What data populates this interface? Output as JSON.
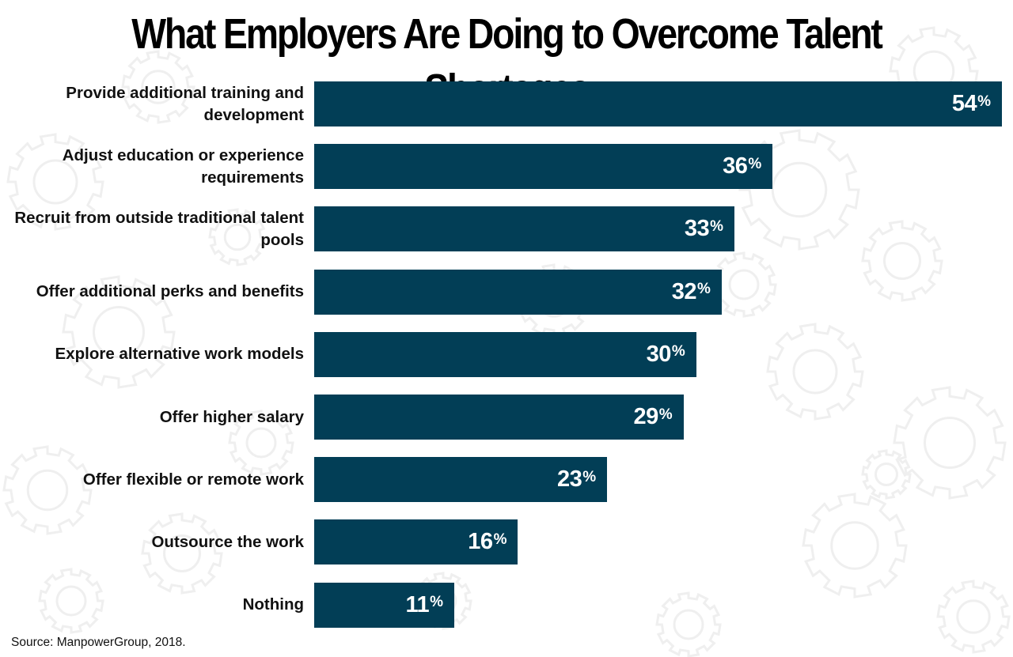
{
  "title": "What Employers Are Doing to Overcome Talent Shortages",
  "source": "Source: ManpowerGroup, 2018.",
  "colors": {
    "bar": "#023e56",
    "bar_text": "#ffffff",
    "background_pattern": "#efefef"
  },
  "chart_data": {
    "type": "bar",
    "orientation": "horizontal",
    "title": "What Employers Are Doing to Overcome Talent Shortages",
    "categories": [
      "Provide additional training and development",
      "Adjust education or experience requirements",
      "Recruit from outside traditional talent pools",
      "Offer additional perks and benefits",
      "Explore alternative work models",
      "Offer higher salary",
      "Offer flexible or remote work",
      "Outsource the work",
      "Nothing"
    ],
    "values": [
      54,
      36,
      33,
      32,
      30,
      29,
      23,
      16,
      11
    ],
    "value_labels": [
      "54",
      "36",
      "33",
      "32",
      "30",
      "29",
      "23",
      "16",
      "11"
    ],
    "value_suffix": "%",
    "xlim": [
      0,
      54
    ],
    "grid": false,
    "legend": "none"
  }
}
